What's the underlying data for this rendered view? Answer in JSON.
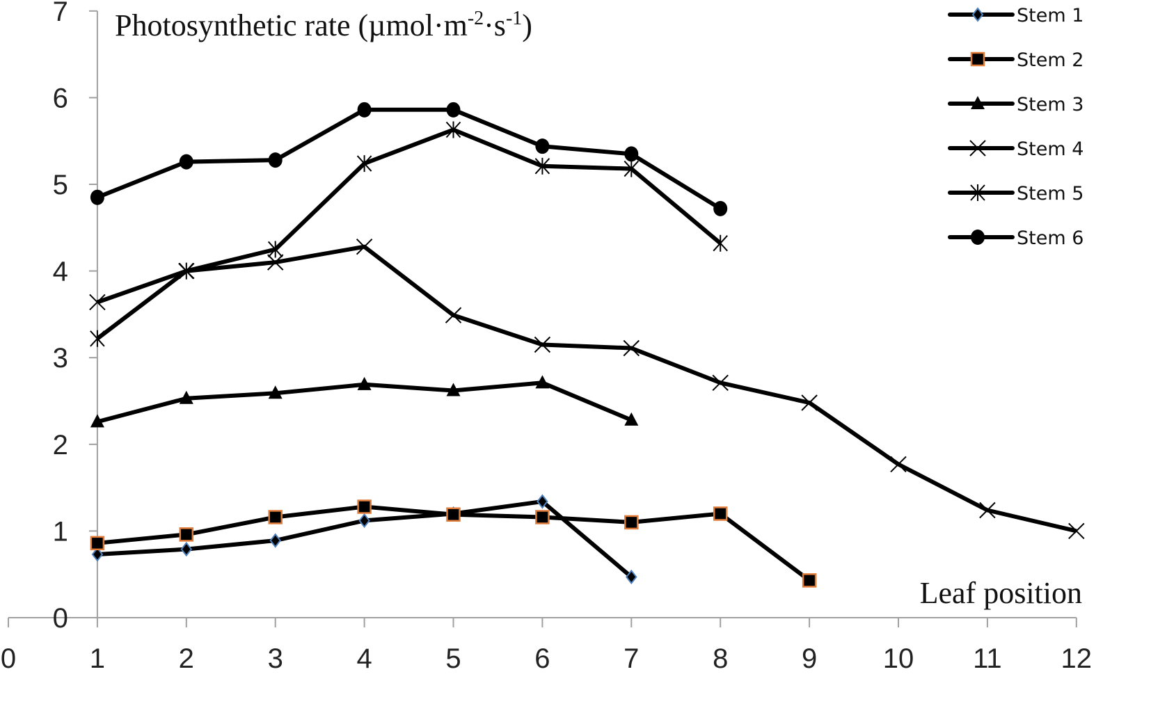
{
  "chart_data": {
    "type": "line",
    "title": "",
    "ylabel": "Photosynthetic rate (µmol·m⁻²·s⁻¹)",
    "ylabel_parts": {
      "main": "Photosynthetic rate (µmol·m",
      "sup1": "-2",
      "mid": "·s",
      "sup2": "-1",
      "end": ")"
    },
    "xlabel": "Leaf position",
    "xlim": [
      0,
      12
    ],
    "ylim": [
      0,
      7
    ],
    "xticks": [
      0,
      1,
      2,
      3,
      4,
      5,
      6,
      7,
      8,
      9,
      10,
      11,
      12
    ],
    "yticks": [
      0,
      1,
      2,
      3,
      4,
      5,
      6,
      7
    ],
    "grid": false,
    "legend_position": "top-right",
    "series": [
      {
        "name": "Stem 1",
        "marker": "diamond",
        "marker_fill": "#000000",
        "marker_edge": "#4f81bd",
        "x": [
          1,
          2,
          3,
          4,
          5,
          6,
          7
        ],
        "values": [
          0.73,
          0.79,
          0.89,
          1.12,
          1.2,
          1.34,
          0.47
        ]
      },
      {
        "name": "Stem 2",
        "marker": "square",
        "marker_fill": "#000000",
        "marker_edge": "#e07b39",
        "x": [
          1,
          2,
          3,
          4,
          5,
          6,
          7,
          8,
          9
        ],
        "values": [
          0.86,
          0.96,
          1.16,
          1.28,
          1.19,
          1.16,
          1.1,
          1.2,
          0.43
        ]
      },
      {
        "name": "Stem 3",
        "marker": "triangle",
        "marker_fill": "#000000",
        "marker_edge": "#000000",
        "x": [
          1,
          2,
          3,
          4,
          5,
          6,
          7
        ],
        "values": [
          2.26,
          2.53,
          2.59,
          2.69,
          2.62,
          2.71,
          2.28
        ]
      },
      {
        "name": "Stem 4",
        "marker": "x",
        "marker_fill": "none",
        "marker_edge": "#000000",
        "x": [
          1,
          2,
          3,
          4,
          5,
          6,
          7,
          8,
          9,
          10,
          11,
          12
        ],
        "values": [
          3.64,
          4.0,
          4.1,
          4.28,
          3.49,
          3.15,
          3.11,
          2.71,
          2.48,
          1.77,
          1.24,
          1.0
        ]
      },
      {
        "name": "Stem 5",
        "marker": "asterisk",
        "marker_fill": "none",
        "marker_edge": "#000000",
        "x": [
          1,
          2,
          3,
          4,
          5,
          6,
          7,
          8
        ],
        "values": [
          3.22,
          4.0,
          4.25,
          5.24,
          5.63,
          5.21,
          5.18,
          4.32
        ]
      },
      {
        "name": "Stem 6",
        "marker": "circle",
        "marker_fill": "#000000",
        "marker_edge": "#000000",
        "x": [
          1,
          2,
          3,
          4,
          5,
          6,
          7,
          8
        ],
        "values": [
          4.85,
          5.26,
          5.28,
          5.86,
          5.86,
          5.44,
          5.35,
          4.72
        ]
      }
    ]
  },
  "colors": {
    "line": "#000000",
    "axis": "#a0a0a0",
    "stem1_marker_edge": "#4f81bd",
    "stem2_marker_edge": "#e07b39"
  }
}
